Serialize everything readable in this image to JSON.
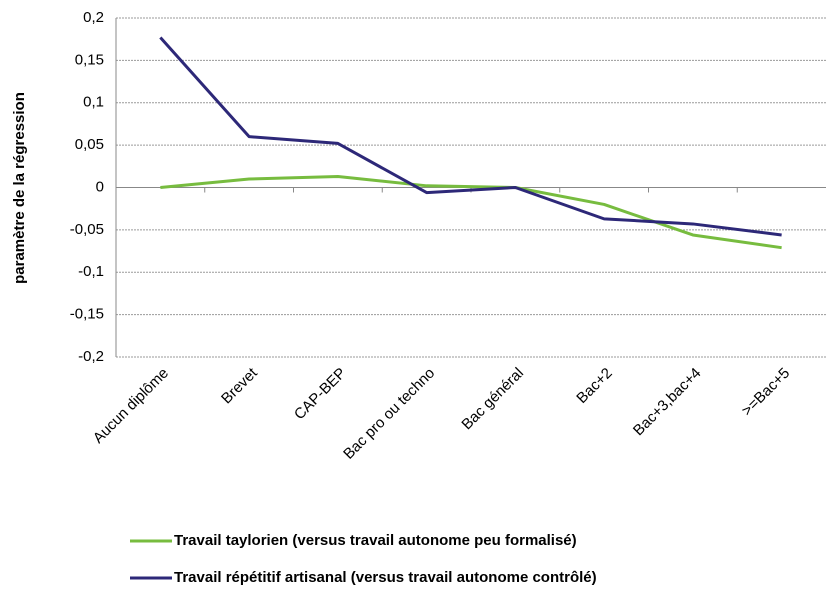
{
  "chart_data": {
    "type": "line",
    "y_label": "paramètre  de la régression",
    "categories": [
      "Aucun diplôme",
      "Brevet",
      "CAP-BEP",
      "Bac pro ou techno",
      "Bac général",
      "Bac+2",
      "Bac+3,bac+4",
      ">=Bac+5"
    ],
    "series": [
      {
        "name": "Travail taylorien (versus travail autonome peu formalisé)",
        "color": "#77bc3f",
        "values": [
          0,
          0.01,
          0.013,
          0.002,
          0,
          -0.02,
          -0.056,
          -0.071
        ]
      },
      {
        "name": "Travail répétitif artisanal (versus travail autonome contrôlé)",
        "color": "#2d2878",
        "values": [
          0.177,
          0.06,
          0.052,
          -0.006,
          0,
          -0.037,
          -0.043,
          -0.056
        ]
      }
    ],
    "ylim": [
      -0.2,
      0.2
    ],
    "yticks": [
      {
        "value": -0.2,
        "label": "-0,2"
      },
      {
        "value": -0.15,
        "label": "-0,15"
      },
      {
        "value": -0.1,
        "label": "-0,1"
      },
      {
        "value": -0.05,
        "label": "-0,05"
      },
      0,
      {
        "value": 0.05,
        "label": "0,05"
      },
      {
        "value": 0.1,
        "label": "0,1"
      },
      {
        "value": 0.15,
        "label": "0,15"
      },
      {
        "value": 0.2,
        "label": "0,2"
      }
    ],
    "grid": true
  }
}
